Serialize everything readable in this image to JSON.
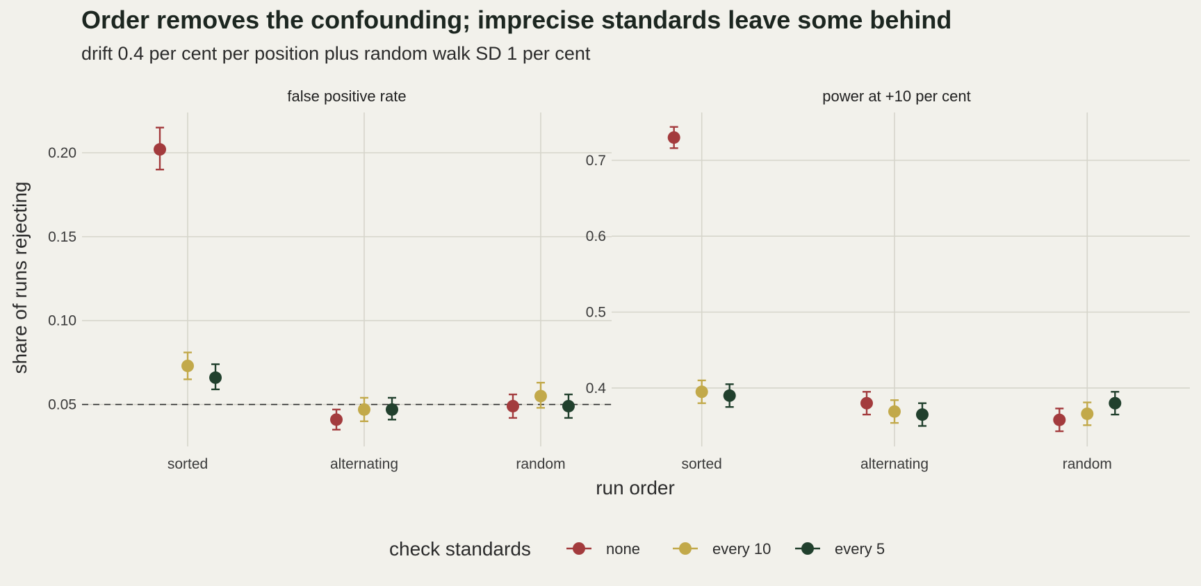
{
  "title": "Order removes the confounding; imprecise standards leave some behind",
  "subtitle": "drift 0.4 per cent per position plus random walk SD 1 per cent",
  "xlabel": "run order",
  "ylabel": "share of runs rejecting",
  "legend": {
    "title": "check standards",
    "position": "bottom"
  },
  "colors": {
    "background": "#f2f1eb",
    "grid": "#d6d5cb",
    "reference_line": "#2b2b2b",
    "none": "#a33b3d",
    "every 10": "#c2a94a",
    "every 5": "#21402d"
  },
  "chart_data": [
    {
      "type": "scatter",
      "facet": "false positive rate",
      "categories": [
        "sorted",
        "alternating",
        "random"
      ],
      "ylim": [
        0.025,
        0.224
      ],
      "yticks": [
        0.05,
        0.1,
        0.15,
        0.2
      ],
      "ytick_labels": [
        "0.05",
        "0.10",
        "0.15",
        "0.20"
      ],
      "reference_line": 0.05,
      "grid": true,
      "series": [
        {
          "name": "none",
          "values": [
            0.202,
            0.041,
            0.049
          ],
          "lower": [
            0.19,
            0.035,
            0.042
          ],
          "upper": [
            0.215,
            0.047,
            0.056
          ]
        },
        {
          "name": "every 10",
          "values": [
            0.073,
            0.047,
            0.055
          ],
          "lower": [
            0.065,
            0.04,
            0.048
          ],
          "upper": [
            0.081,
            0.054,
            0.063
          ]
        },
        {
          "name": "every 5",
          "values": [
            0.066,
            0.047,
            0.049
          ],
          "lower": [
            0.059,
            0.041,
            0.042
          ],
          "upper": [
            0.074,
            0.054,
            0.056
          ]
        }
      ]
    },
    {
      "type": "scatter",
      "facet": "power at +10 per cent",
      "categories": [
        "sorted",
        "alternating",
        "random"
      ],
      "ylim": [
        0.323,
        0.763
      ],
      "yticks": [
        0.4,
        0.5,
        0.6,
        0.7
      ],
      "ytick_labels": [
        "0.4",
        "0.5",
        "0.6",
        "0.7"
      ],
      "grid": true,
      "series": [
        {
          "name": "none",
          "values": [
            0.73,
            0.38,
            0.358
          ],
          "lower": [
            0.716,
            0.365,
            0.343
          ],
          "upper": [
            0.744,
            0.395,
            0.373
          ]
        },
        {
          "name": "every 10",
          "values": [
            0.395,
            0.369,
            0.366
          ],
          "lower": [
            0.38,
            0.354,
            0.351
          ],
          "upper": [
            0.41,
            0.384,
            0.381
          ]
        },
        {
          "name": "every 5",
          "values": [
            0.39,
            0.365,
            0.38
          ],
          "lower": [
            0.375,
            0.35,
            0.365
          ],
          "upper": [
            0.405,
            0.38,
            0.395
          ]
        }
      ]
    }
  ]
}
